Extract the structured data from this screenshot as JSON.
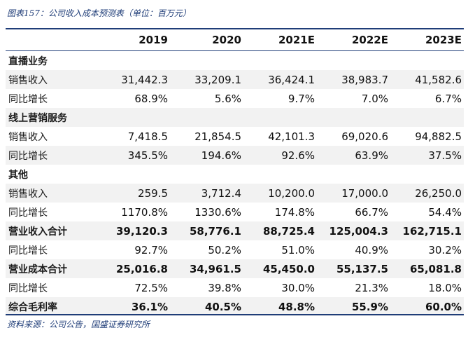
{
  "title": "图表157：公司收入成本预测表（单位：百万元）",
  "columns": [
    "",
    "2019",
    "2020",
    "2021E",
    "2022E",
    "2023E"
  ],
  "rows": [
    {
      "kind": "section",
      "label": "直播业务",
      "values": [
        "",
        "",
        "",
        "",
        ""
      ]
    },
    {
      "kind": "data",
      "label": "销售收入",
      "values": [
        "31,442.3",
        "33,209.1",
        "36,424.1",
        "38,983.7",
        "41,582.6"
      ]
    },
    {
      "kind": "data",
      "label": "同比增长",
      "values": [
        "68.9%",
        "5.6%",
        "9.7%",
        "7.0%",
        "6.7%"
      ]
    },
    {
      "kind": "section",
      "label": "线上营销服务",
      "values": [
        "",
        "",
        "",
        "",
        ""
      ]
    },
    {
      "kind": "data",
      "label": "销售收入",
      "values": [
        "7,418.5",
        "21,854.5",
        "42,101.3",
        "69,020.6",
        "94,882.5"
      ]
    },
    {
      "kind": "data",
      "label": "同比增长",
      "values": [
        "345.5%",
        "194.6%",
        "92.6%",
        "63.9%",
        "37.5%"
      ]
    },
    {
      "kind": "section",
      "label": "其他",
      "values": [
        "",
        "",
        "",
        "",
        ""
      ]
    },
    {
      "kind": "data",
      "label": "销售收入",
      "values": [
        "259.5",
        "3,712.4",
        "10,200.0",
        "17,000.0",
        "26,250.0"
      ]
    },
    {
      "kind": "data",
      "label": "同比增长",
      "values": [
        "1170.8%",
        "1330.6%",
        "174.8%",
        "66.7%",
        "54.4%"
      ]
    },
    {
      "kind": "total",
      "label": "营业收入合计",
      "values": [
        "39,120.3",
        "58,776.1",
        "88,725.4",
        "125,004.3",
        "162,715.1"
      ]
    },
    {
      "kind": "data",
      "label": "同比增长",
      "values": [
        "92.7%",
        "50.2%",
        "51.0%",
        "40.9%",
        "30.2%"
      ]
    },
    {
      "kind": "total",
      "label": "营业成本合计",
      "values": [
        "25,016.8",
        "34,961.5",
        "45,450.0",
        "55,137.5",
        "65,081.8"
      ]
    },
    {
      "kind": "data",
      "label": "同比增长",
      "values": [
        "72.5%",
        "39.8%",
        "30.0%",
        "21.3%",
        "18.0%"
      ]
    },
    {
      "kind": "total",
      "label": "综合毛利率",
      "values": [
        "36.1%",
        "40.5%",
        "48.8%",
        "55.9%",
        "60.0%"
      ]
    }
  ],
  "source": "资料来源：公司公告，国盛证券研究所",
  "colors": {
    "accent": "#1f3d78",
    "shade": "#f2f2f2"
  }
}
